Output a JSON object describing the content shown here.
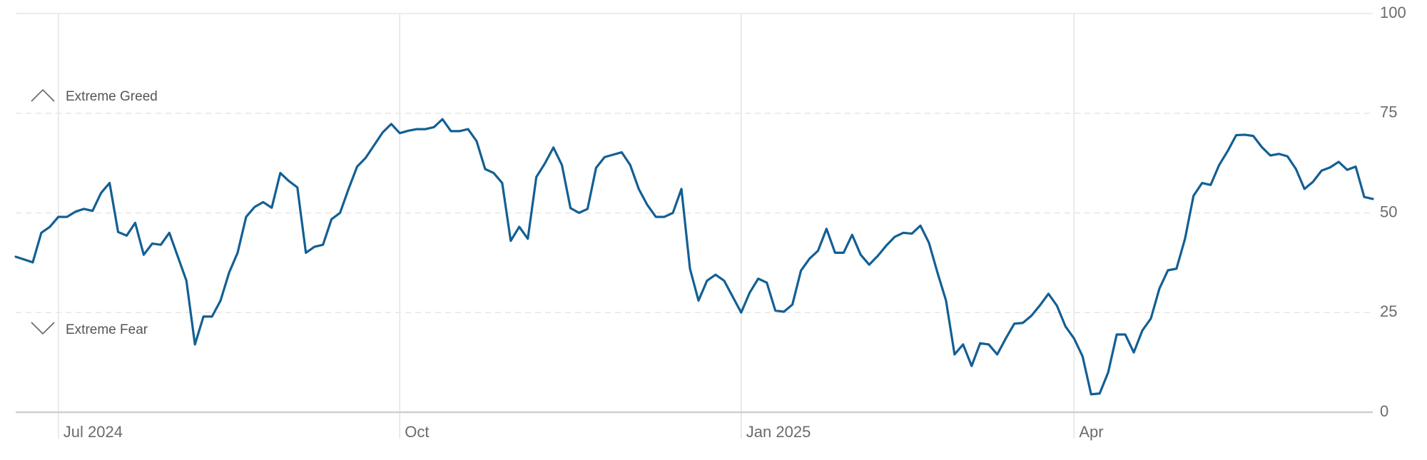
{
  "chart_data": {
    "type": "line",
    "annotations": [
      "Extreme Greed",
      "Extreme Fear"
    ],
    "categories": [
      null,
      null,
      null,
      null,
      null,
      "Jul 2024",
      null,
      null,
      null,
      null,
      null,
      null,
      null,
      null,
      null,
      null,
      null,
      null,
      null,
      null,
      null,
      null,
      null,
      null,
      null,
      null,
      null,
      null,
      null,
      null,
      null,
      null,
      null,
      null,
      null,
      null,
      null,
      null,
      null,
      null,
      null,
      null,
      null,
      null,
      null,
      "Oct",
      null,
      null,
      null,
      null,
      null,
      null,
      null,
      null,
      null,
      null,
      null,
      null,
      null,
      null,
      null,
      null,
      null,
      null,
      null,
      null,
      null,
      null,
      null,
      null,
      null,
      null,
      null,
      null,
      null,
      null,
      null,
      null,
      null,
      null,
      null,
      null,
      null,
      null,
      null,
      "Jan 2025",
      null,
      null,
      null,
      null,
      null,
      null,
      null,
      null,
      null,
      null,
      null,
      null,
      null,
      null,
      null,
      null,
      null,
      null,
      null,
      null,
      null,
      null,
      null,
      null,
      null,
      null,
      null,
      null,
      null,
      null,
      null,
      null,
      null,
      null,
      null,
      null,
      null,
      null,
      "Apr",
      null,
      null,
      null,
      null,
      null,
      null,
      null,
      null,
      null,
      null,
      null,
      null,
      null,
      null,
      null,
      null,
      null,
      null,
      null,
      null,
      null,
      null,
      null,
      null,
      null,
      null,
      null,
      null,
      null,
      null,
      null,
      null,
      null,
      null,
      null
    ],
    "values": [
      39,
      38.3,
      37.6,
      45,
      46.5,
      49,
      49,
      50.3,
      51,
      50.5,
      55,
      57.5,
      45.2,
      44.3,
      47.5,
      39.5,
      42.3,
      42,
      45,
      39,
      33,
      17,
      24,
      24,
      28,
      35,
      40,
      49,
      51.5,
      52.7,
      51.3,
      60,
      58,
      56.4,
      40,
      41.5,
      42,
      48.4,
      50,
      56,
      61.6,
      63.8,
      67,
      70.2,
      72.3,
      70,
      70.6,
      71,
      71,
      71.5,
      73.5,
      70.5,
      70.5,
      71,
      68,
      61,
      60,
      57.5,
      43,
      46.5,
      43.5,
      59,
      62.4,
      66.4,
      62,
      51.2,
      50,
      51,
      61.3,
      64,
      64.6,
      65.2,
      62,
      56,
      52,
      49,
      49,
      50,
      56,
      36,
      28,
      33,
      34.5,
      33,
      29,
      25,
      30,
      33.5,
      32.5,
      25.5,
      25.2,
      27,
      35.5,
      38.5,
      40.5,
      46,
      40,
      40,
      44.5,
      39.5,
      37,
      39.2,
      41.8,
      44,
      45,
      44.8,
      46.8,
      42.5,
      35,
      28,
      14.5,
      17,
      11.6,
      17.3,
      17,
      14.5,
      18.5,
      22.2,
      22.4,
      24.2,
      26.8,
      29.7,
      26.7,
      21.5,
      18.5,
      14,
      4.5,
      4.7,
      10,
      19.5,
      19.5,
      15,
      20.5,
      23.5,
      31,
      35.6,
      36,
      43.5,
      54.3,
      57.5,
      57,
      62,
      65.5,
      69.5,
      69.6,
      69.3,
      66.5,
      64.4,
      64.8,
      64.2,
      61,
      56,
      57.8,
      60.6,
      61.4,
      62.8,
      60.8,
      61.6,
      54,
      53.5
    ],
    "color": "#135f94",
    "ylim": [
      0,
      100
    ],
    "yticks": [
      0,
      25,
      50,
      75,
      100
    ],
    "grid": true
  }
}
